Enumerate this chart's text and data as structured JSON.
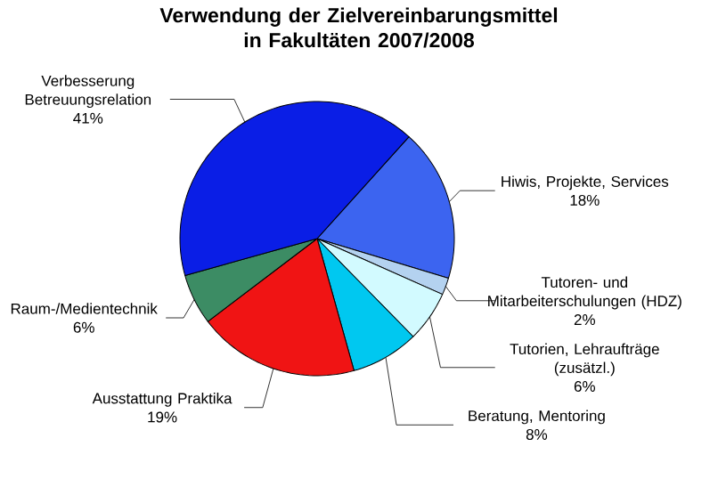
{
  "chart_data": {
    "type": "pie",
    "title": "Verwendung der Zielvereinbarungsmittel in Fakultäten 2007/2008",
    "categories": [
      "Hiwis, Projekte, Services",
      "Tutoren- und Mitarbeiterschulungen (HDZ)",
      "Tutorien, Lehraufträge (zusätzl.)",
      "Beratung, Mentoring",
      "Ausstattung Praktika",
      "Raum-/Medientechnik",
      "Verbesserung Betreuungsrelation"
    ],
    "values": [
      18,
      2,
      6,
      8,
      19,
      6,
      41
    ],
    "value_labels": [
      "18%",
      "2%",
      "6%",
      "8%",
      "19%",
      "6%",
      "41%"
    ],
    "colors": [
      "#3c64f0",
      "#b4d2f0",
      "#d2faff",
      "#00c8f0",
      "#f01414",
      "#3c8c64",
      "#0a1ee6"
    ]
  }
}
